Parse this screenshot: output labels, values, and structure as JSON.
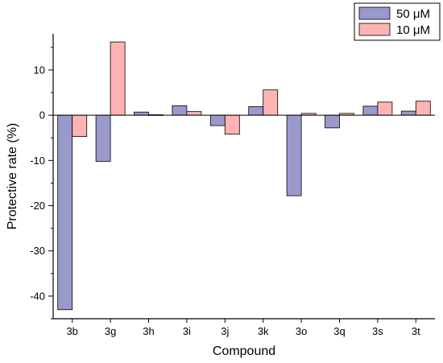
{
  "chart_data": {
    "type": "bar",
    "xlabel": "Compound",
    "ylabel": "Protective rate (%)",
    "ylim": [
      -45,
      18
    ],
    "yticks": [
      -40,
      -30,
      -20,
      -10,
      0,
      10
    ],
    "ytick_labels": [
      "-40",
      "-30",
      "-20",
      "-10",
      "0",
      "10"
    ],
    "categories": [
      "3b",
      "3g",
      "3h",
      "3i",
      "3j",
      "3k",
      "3o",
      "3q",
      "3s",
      "3t"
    ],
    "series": [
      {
        "name": "50 μM",
        "color": "#9999cc",
        "values": [
          -43,
          -10.2,
          0.7,
          2.1,
          -2.3,
          1.9,
          -17.8,
          -2.8,
          2.0,
          0.9
        ]
      },
      {
        "name": "10 μM",
        "color": "#ffb3b3",
        "values": [
          -4.7,
          16.2,
          0.1,
          0.8,
          -4.2,
          5.6,
          0.4,
          0.4,
          2.9,
          3.1
        ]
      }
    ],
    "legend_position": "top-right",
    "grid": false
  }
}
